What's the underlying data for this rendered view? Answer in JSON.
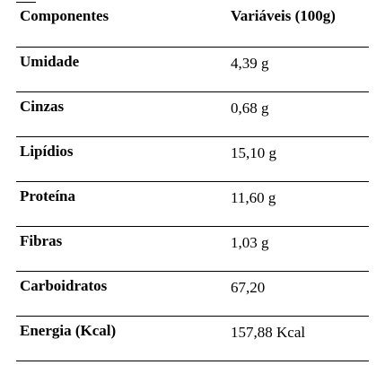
{
  "table": {
    "headers": [
      "Componentes",
      "Variáveis (100g)"
    ],
    "rows": [
      [
        "Umidade",
        "4,39 g"
      ],
      [
        "Cinzas",
        "0,68 g"
      ],
      [
        "Lipídios",
        "15,10 g"
      ],
      [
        "Proteína",
        "11,60 g"
      ],
      [
        "Fibras",
        "1,03 g"
      ],
      [
        "Carboidratos",
        "67,20"
      ],
      [
        "Energia (Kcal)",
        "157,88 Kcal"
      ]
    ]
  }
}
